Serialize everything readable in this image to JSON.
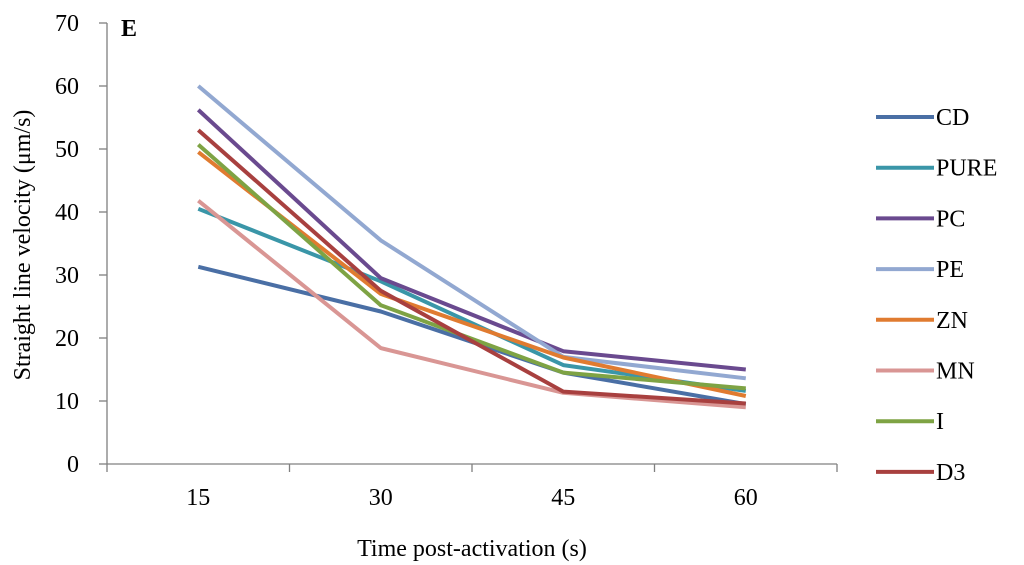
{
  "chart_data": {
    "type": "line",
    "panel_label": "E",
    "xlabel": "Time post-activation (s)",
    "ylabel": "Straight line velocity (μm/s)",
    "categories": [
      "15",
      "30",
      "45",
      "60"
    ],
    "ylim": [
      0,
      70
    ],
    "yticks": [
      "0",
      "10",
      "20",
      "30",
      "40",
      "50",
      "60",
      "70"
    ],
    "grid": false,
    "legend_position": "right",
    "series": [
      {
        "name": "CD",
        "color": "#4A6FA5",
        "values": [
          31.3,
          24.2,
          14.5,
          9.5
        ]
      },
      {
        "name": "PURE",
        "color": "#3A96A8",
        "values": [
          40.5,
          29.0,
          15.7,
          11.6
        ]
      },
      {
        "name": "PC",
        "color": "#6A4A8F",
        "values": [
          56.2,
          29.5,
          17.9,
          15.0
        ]
      },
      {
        "name": "PE",
        "color": "#92A8D1",
        "values": [
          60.0,
          35.5,
          17.0,
          13.6
        ]
      },
      {
        "name": "ZN",
        "color": "#E07B30",
        "values": [
          49.5,
          27.0,
          16.9,
          10.8
        ]
      },
      {
        "name": "MN",
        "color": "#D99694",
        "values": [
          41.8,
          18.4,
          11.3,
          9.0
        ]
      },
      {
        "name": "I",
        "color": "#7EA344",
        "values": [
          50.7,
          25.2,
          14.5,
          12.0
        ]
      },
      {
        "name": "D3",
        "color": "#A8403F",
        "values": [
          53.0,
          27.5,
          11.5,
          9.6
        ]
      }
    ]
  }
}
